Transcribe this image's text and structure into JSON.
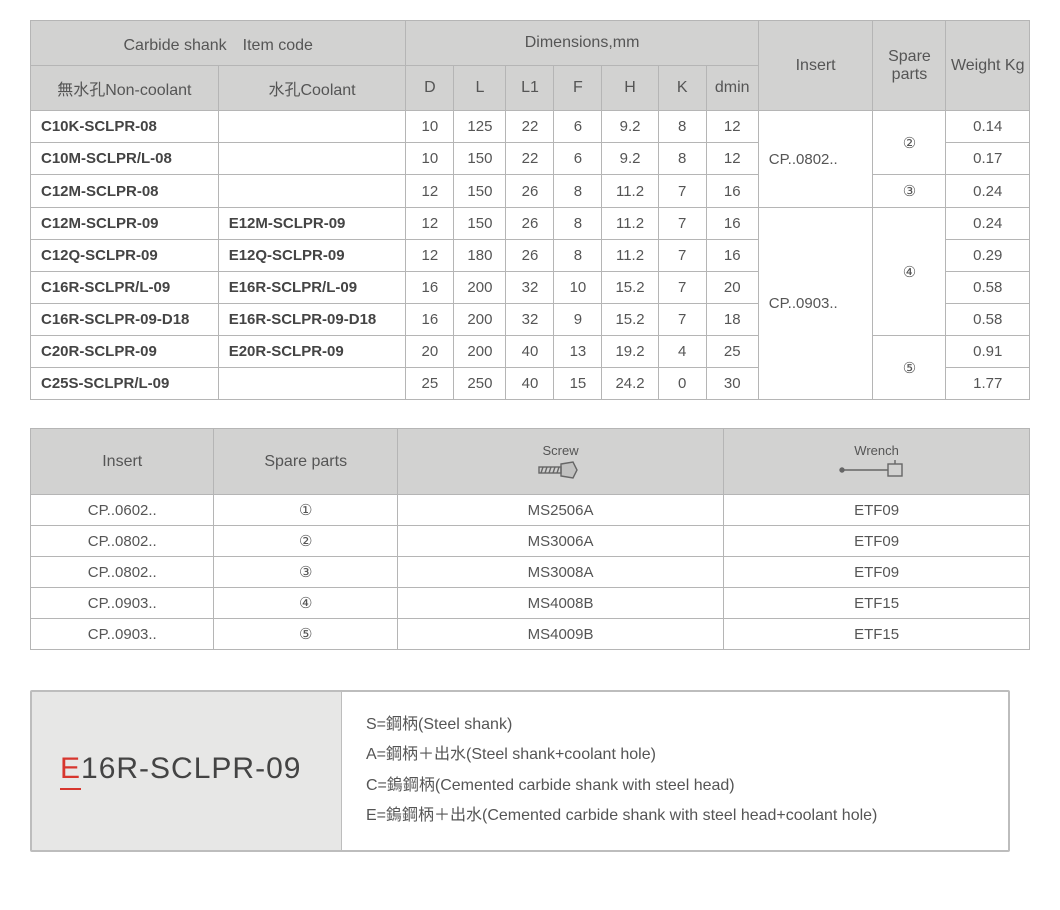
{
  "t1": {
    "h": {
      "shank": "Carbide shank　Item code",
      "nc": "無水孔Non-coolant",
      "co": "水孔Coolant",
      "dim": "Dimensions,mm",
      "D": "D",
      "L": "L",
      "L1": "L1",
      "F": "F",
      "H": "H",
      "K": "K",
      "dmin": "dmin",
      "ins": "Insert",
      "sp": "Spare parts",
      "wt": "Weight Kg"
    },
    "rows": [
      {
        "nc": "C10K-SCLPR-08",
        "co": "",
        "D": "10",
        "L": "125",
        "L1": "22",
        "F": "6",
        "H": "9.2",
        "K": "8",
        "dmin": "12",
        "ins": "CP..0802..",
        "sp": "②",
        "wt": "0.14"
      },
      {
        "nc": "C10M-SCLPR/L-08",
        "co": "",
        "D": "10",
        "L": "150",
        "L1": "22",
        "F": "6",
        "H": "9.2",
        "K": "8",
        "dmin": "12",
        "ins": "",
        "sp": "",
        "wt": "0.17"
      },
      {
        "nc": "C12M-SCLPR-08",
        "co": "",
        "D": "12",
        "L": "150",
        "L1": "26",
        "F": "8",
        "H": "11.2",
        "K": "7",
        "dmin": "16",
        "ins": "",
        "sp": "③",
        "wt": "0.24"
      },
      {
        "nc": "C12M-SCLPR-09",
        "co": "E12M-SCLPR-09",
        "D": "12",
        "L": "150",
        "L1": "26",
        "F": "8",
        "H": "11.2",
        "K": "7",
        "dmin": "16",
        "ins": "CP..0903..",
        "sp": "④",
        "wt": "0.24"
      },
      {
        "nc": "C12Q-SCLPR-09",
        "co": "E12Q-SCLPR-09",
        "D": "12",
        "L": "180",
        "L1": "26",
        "F": "8",
        "H": "11.2",
        "K": "7",
        "dmin": "16",
        "ins": "",
        "sp": "",
        "wt": "0.29"
      },
      {
        "nc": "C16R-SCLPR/L-09",
        "co": "E16R-SCLPR/L-09",
        "D": "16",
        "L": "200",
        "L1": "32",
        "F": "10",
        "H": "15.2",
        "K": "7",
        "dmin": "20",
        "ins": "",
        "sp": "",
        "wt": "0.58"
      },
      {
        "nc": "C16R-SCLPR-09-D18",
        "co": "E16R-SCLPR-09-D18",
        "D": "16",
        "L": "200",
        "L1": "32",
        "F": "9",
        "H": "15.2",
        "K": "7",
        "dmin": "18",
        "ins": "",
        "sp": "",
        "wt": "0.58"
      },
      {
        "nc": "C20R-SCLPR-09",
        "co": "E20R-SCLPR-09",
        "D": "20",
        "L": "200",
        "L1": "40",
        "F": "13",
        "H": "19.2",
        "K": "4",
        "dmin": "25",
        "ins": "",
        "sp": "⑤",
        "wt": "0.91"
      },
      {
        "nc": "C25S-SCLPR/L-09",
        "co": "",
        "D": "25",
        "L": "250",
        "L1": "40",
        "F": "15",
        "H": "24.2",
        "K": "0",
        "dmin": "30",
        "ins": "",
        "sp": "",
        "wt": "1.77"
      }
    ],
    "spansIns": [
      "3",
      "6"
    ],
    "spansSp": [
      "2",
      "1",
      "4",
      "2"
    ]
  },
  "t2": {
    "h": {
      "ins": "Insert",
      "sp": "Spare parts",
      "scr": "Screw",
      "wr": "Wrench"
    },
    "rows": [
      {
        "ins": "CP..0602..",
        "sp": "①",
        "scr": "MS2506A",
        "wr": "ETF09"
      },
      {
        "ins": "CP..0802..",
        "sp": "②",
        "scr": "MS3006A",
        "wr": "ETF09"
      },
      {
        "ins": "CP..0802..",
        "sp": "③",
        "scr": "MS3008A",
        "wr": "ETF09"
      },
      {
        "ins": "CP..0903..",
        "sp": "④",
        "scr": "MS4008B",
        "wr": "ETF15"
      },
      {
        "ins": "CP..0903..",
        "sp": "⑤",
        "scr": "MS4009B",
        "wr": "ETF15"
      }
    ]
  },
  "legend": {
    "codeRed": "E",
    "codeRest": "16R-SCLPR-09",
    "lines": [
      "S=鋼柄(Steel shank)",
      "A=鋼柄＋出水(Steel shank+coolant hole)",
      "C=鎢鋼柄(Cemented carbide shank with steel head)",
      "E=鎢鋼柄＋出水(Cemented carbide shank with steel head+coolant hole)"
    ]
  },
  "colors": {
    "hdr": "#d2d2d1",
    "border": "#b5b5b5",
    "text": "#555",
    "red": "#d7362e"
  }
}
